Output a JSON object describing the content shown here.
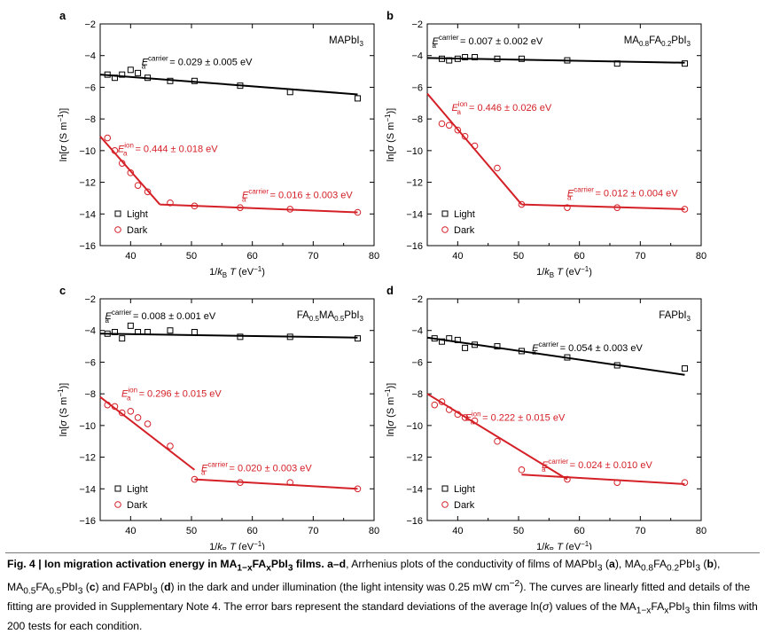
{
  "colors": {
    "light": "#000000",
    "dark": "#d42027",
    "axis": "#000000"
  },
  "legend": {
    "light": "Light",
    "dark": "Dark"
  },
  "xlabel_parts": {
    "base": "1/",
    "italic_k": "k",
    "sub": "B",
    "italic_t": "T",
    "unit": " (eV",
    "sup": "−1",
    "close": ")"
  },
  "ylabel_parts": {
    "open": "ln[",
    "sigma": "σ",
    "unit": " (S m",
    "sup": "−1",
    "close": ")]"
  },
  "ea_parts": {
    "symbol": "E",
    "sub": "a",
    "carrier": "carrier",
    "ion": "ion"
  },
  "chart_data": [
    {
      "panel": "a",
      "type": "scatter",
      "title_parts": [
        {
          "t": "MAPbI"
        },
        {
          "t": "3",
          "sub": true
        }
      ],
      "xlim": [
        35,
        80
      ],
      "ylim": [
        -16,
        -2
      ],
      "xticks": [
        40,
        50,
        60,
        70,
        80
      ],
      "yticks": [
        -2,
        -4,
        -6,
        -8,
        -10,
        -12,
        -14,
        -16
      ],
      "series": [
        {
          "name": "Light",
          "x": [
            36.2,
            37.4,
            38.6,
            40.0,
            41.2,
            42.8,
            46.5,
            50.5,
            58.0,
            66.2,
            77.3
          ],
          "y": [
            -5.2,
            -5.4,
            -5.2,
            -4.9,
            -5.1,
            -5.4,
            -5.6,
            -5.6,
            -5.9,
            -6.3,
            -6.7
          ]
        },
        {
          "name": "Dark",
          "x": [
            36.2,
            37.4,
            38.6,
            40.0,
            41.2,
            42.8,
            46.5,
            50.5,
            58.0,
            66.2,
            77.3
          ],
          "y": [
            -9.2,
            -10.0,
            -10.8,
            -11.4,
            -12.2,
            -12.6,
            -13.3,
            -13.5,
            -13.6,
            -13.7,
            -13.9
          ]
        }
      ],
      "fit_lines": [
        {
          "series": "Light",
          "x": [
            35,
            77.3
          ],
          "y": [
            -5.2,
            -6.45
          ]
        },
        {
          "series": "Dark",
          "x": [
            35,
            44.8
          ],
          "y": [
            -9.1,
            -13.4
          ]
        },
        {
          "series": "Dark",
          "x": [
            44.8,
            77.3
          ],
          "y": [
            -13.4,
            -13.9
          ]
        }
      ],
      "annotations": [
        {
          "kind": "carrier",
          "series": "Light",
          "value": " = 0.029 ± 0.005 eV",
          "x": 41.8,
          "y": -4.6
        },
        {
          "kind": "ion",
          "series": "Dark",
          "value": " = 0.444 ± 0.018 eV",
          "x": 37.9,
          "y": -10.1
        },
        {
          "kind": "carrier",
          "series": "Dark",
          "value": " = 0.016 ± 0.003 eV",
          "x": 58.3,
          "y": -13.0
        }
      ]
    },
    {
      "panel": "b",
      "type": "scatter",
      "title_parts": [
        {
          "t": "MA"
        },
        {
          "t": "0.8",
          "sub": true
        },
        {
          "t": "FA"
        },
        {
          "t": "0.2",
          "sub": true
        },
        {
          "t": "PbI"
        },
        {
          "t": "3",
          "sub": true
        }
      ],
      "xlim": [
        35,
        80
      ],
      "ylim": [
        -16,
        -2
      ],
      "xticks": [
        40,
        50,
        60,
        70,
        80
      ],
      "yticks": [
        -2,
        -4,
        -6,
        -8,
        -10,
        -12,
        -14,
        -16
      ],
      "series": [
        {
          "name": "Light",
          "x": [
            37.4,
            38.6,
            40.0,
            41.2,
            42.8,
            46.5,
            50.5,
            58.0,
            66.2,
            77.3
          ],
          "y": [
            -4.2,
            -4.3,
            -4.2,
            -4.1,
            -4.1,
            -4.2,
            -4.2,
            -4.3,
            -4.5,
            -4.5
          ]
        },
        {
          "name": "Dark",
          "x": [
            37.4,
            38.6,
            40.0,
            41.2,
            42.8,
            46.5,
            50.5,
            58.0,
            66.2,
            77.3
          ],
          "y": [
            -8.3,
            -8.4,
            -8.7,
            -9.1,
            -9.7,
            -11.1,
            -13.4,
            -13.6,
            -13.6,
            -13.7
          ]
        }
      ],
      "fit_lines": [
        {
          "series": "Light",
          "x": [
            35,
            77.3
          ],
          "y": [
            -4.15,
            -4.45
          ]
        },
        {
          "series": "Dark",
          "x": [
            35,
            50.5
          ],
          "y": [
            -6.4,
            -13.4
          ]
        },
        {
          "series": "Dark",
          "x": [
            50.5,
            77.3
          ],
          "y": [
            -13.4,
            -13.7
          ]
        }
      ],
      "annotations": [
        {
          "kind": "carrier",
          "series": "Light",
          "value": " = 0.007 ± 0.002 eV",
          "x": 35.8,
          "y": -3.3
        },
        {
          "kind": "ion",
          "series": "Dark",
          "value": " = 0.446 ± 0.026 eV",
          "x": 39.0,
          "y": -7.5
        },
        {
          "kind": "carrier",
          "series": "Dark",
          "value": " = 0.012 ± 0.004 eV",
          "x": 58.0,
          "y": -12.9
        }
      ]
    },
    {
      "panel": "c",
      "type": "scatter",
      "title_parts": [
        {
          "t": "FA"
        },
        {
          "t": "0.5",
          "sub": true
        },
        {
          "t": "MA"
        },
        {
          "t": "0.5",
          "sub": true
        },
        {
          "t": "PbI"
        },
        {
          "t": "3",
          "sub": true
        }
      ],
      "xlim": [
        35,
        80
      ],
      "ylim": [
        -16,
        -2
      ],
      "xticks": [
        40,
        50,
        60,
        70,
        80
      ],
      "yticks": [
        -2,
        -4,
        -6,
        -8,
        -10,
        -12,
        -14,
        -16
      ],
      "series": [
        {
          "name": "Light",
          "x": [
            36.2,
            37.4,
            38.6,
            40.0,
            41.2,
            42.8,
            46.5,
            50.5,
            58.0,
            66.2,
            77.3
          ],
          "y": [
            -4.2,
            -4.1,
            -4.5,
            -3.7,
            -4.1,
            -4.1,
            -4.0,
            -4.1,
            -4.4,
            -4.4,
            -4.5
          ]
        },
        {
          "name": "Dark",
          "x": [
            36.2,
            37.4,
            38.6,
            40.0,
            41.2,
            42.8,
            46.5,
            50.5,
            58.0,
            66.2,
            77.3
          ],
          "y": [
            -8.7,
            -8.8,
            -9.2,
            -9.1,
            -9.5,
            -9.9,
            -11.3,
            -13.4,
            -13.6,
            -13.6,
            -14.0
          ]
        }
      ],
      "fit_lines": [
        {
          "series": "Light",
          "x": [
            35,
            77.3
          ],
          "y": [
            -4.2,
            -4.45
          ]
        },
        {
          "series": "Dark",
          "x": [
            35,
            50.5
          ],
          "y": [
            -8.2,
            -12.8
          ]
        },
        {
          "series": "Dark",
          "x": [
            50.5,
            77.3
          ],
          "y": [
            -13.4,
            -14.0
          ]
        }
      ],
      "annotations": [
        {
          "kind": "carrier",
          "series": "Light",
          "value": " = 0.008 ± 0.001 eV",
          "x": 35.8,
          "y": -3.3
        },
        {
          "kind": "ion",
          "series": "Dark",
          "value": " = 0.296 ± 0.015 eV",
          "x": 38.5,
          "y": -8.2
        },
        {
          "kind": "carrier",
          "series": "Dark",
          "value": " = 0.020 ± 0.003 eV",
          "x": 51.6,
          "y": -12.9
        }
      ]
    },
    {
      "panel": "d",
      "type": "scatter",
      "title_parts": [
        {
          "t": "FAPbI"
        },
        {
          "t": "3",
          "sub": true
        }
      ],
      "xlim": [
        35,
        80
      ],
      "ylim": [
        -16,
        -2
      ],
      "xticks": [
        40,
        50,
        60,
        70,
        80
      ],
      "yticks": [
        -2,
        -4,
        -6,
        -8,
        -10,
        -12,
        -14,
        -16
      ],
      "series": [
        {
          "name": "Light",
          "x": [
            36.2,
            37.4,
            38.6,
            40.0,
            41.2,
            42.8,
            46.5,
            50.5,
            58.0,
            66.2,
            77.3
          ],
          "y": [
            -4.5,
            -4.7,
            -4.5,
            -4.6,
            -5.1,
            -4.9,
            -5.0,
            -5.3,
            -5.7,
            -6.2,
            -6.4
          ]
        },
        {
          "name": "Dark",
          "x": [
            36.2,
            37.4,
            38.6,
            40.0,
            41.2,
            42.8,
            46.5,
            50.5,
            58.0,
            66.2,
            77.3
          ],
          "y": [
            -8.7,
            -8.5,
            -9.0,
            -9.3,
            -9.5,
            -9.7,
            -11.0,
            -12.8,
            -13.4,
            -13.6,
            -13.6
          ]
        }
      ],
      "fit_lines": [
        {
          "series": "Light",
          "x": [
            35,
            77.3
          ],
          "y": [
            -4.45,
            -6.8
          ]
        },
        {
          "series": "Dark",
          "x": [
            35,
            58.0
          ],
          "y": [
            -8.0,
            -13.4
          ]
        },
        {
          "series": "Dark",
          "x": [
            50.5,
            77.3
          ],
          "y": [
            -13.1,
            -13.7
          ]
        }
      ],
      "annotations": [
        {
          "kind": "carrier",
          "series": "Light",
          "value": " = 0.054 ± 0.003 eV",
          "x": 52.2,
          "y": -5.3
        },
        {
          "kind": "ion",
          "series": "Dark",
          "value": " = 0.222 ± 0.015 eV",
          "x": 41.2,
          "y": -9.7
        },
        {
          "kind": "carrier",
          "series": "Dark",
          "value": " = 0.024 ± 0.010 eV",
          "x": 53.8,
          "y": -12.7
        }
      ]
    }
  ],
  "caption": {
    "fig_label": "Fig. 4 | Ion migration activation energy in MA",
    "fig_sub1": "1−x",
    "fig_mid": "FA",
    "fig_sub2": "x",
    "fig_end": "PbI",
    "fig_sub3": "3",
    "fig_end2": " films. a–d",
    "t1": ", Arrhenius plots of the conductivity of films of MAPbI",
    "t1_sub": "3",
    "t2": " (",
    "t2_b": "a",
    "t3": "), MA",
    "t3_sub1": "0.8",
    "t3_fa": "FA",
    "t3_sub2": "0.2",
    "t3_pb": "PbI",
    "t3_sub3": "3",
    "t4": " (",
    "t4_b": "b",
    "t5": "), MA",
    "t5_sub1": "0.5",
    "t5_fa": "FA",
    "t5_sub2": "0.5",
    "t5_pb": "PbI",
    "t5_sub3": "3",
    "t6": " (",
    "t6_b": "c",
    "t7": ") and FAPbI",
    "t7_sub": "3",
    "t8": " (",
    "t8_b": "d",
    "t9": ") in the dark and under illumination (the light intensity was 0.25 mW cm",
    "t9_sup": "−2",
    "t10": "). The curves are linearly fitted and details of the fitting are provided in Supplementary Note 4. The error bars represent the standard deviations of the average ln(",
    "t10_sigma": "σ",
    "t11": ") values of the MA",
    "t11_sub1": "1−x",
    "t11_fa": "FA",
    "t11_sub2": "x",
    "t11_pb": "PbI",
    "t11_sub3": "3",
    "t12": " thin films with 200 tests for each condition."
  }
}
